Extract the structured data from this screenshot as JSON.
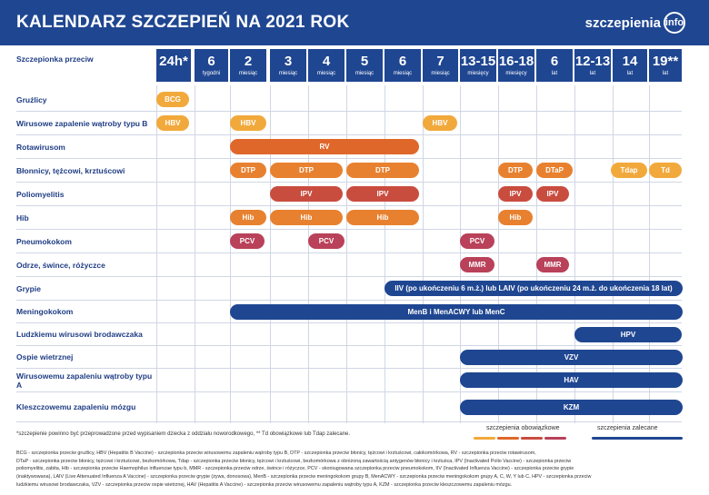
{
  "header": {
    "title": "KALENDARZ SZCZEPIEŃ NA 2021 ROK",
    "logo_text": "szczepienia",
    "logo_badge": "info"
  },
  "columns": {
    "corner_label": "Szczepionka przeciw",
    "ages": [
      {
        "num": "24h*",
        "unit": ""
      },
      {
        "num": "6",
        "unit": "tygodni"
      },
      {
        "num": "2",
        "unit": "miesiąc"
      },
      {
        "num": "3",
        "unit": "miesiąc"
      },
      {
        "num": "4",
        "unit": "miesiąc"
      },
      {
        "num": "5",
        "unit": "miesiąc"
      },
      {
        "num": "6",
        "unit": "miesiąc"
      },
      {
        "num": "7",
        "unit": "miesiąc"
      },
      {
        "num": "13-15",
        "unit": "miesięcy"
      },
      {
        "num": "16-18",
        "unit": "miesięcy"
      },
      {
        "num": "6",
        "unit": "lat"
      },
      {
        "num": "12-13",
        "unit": "lat"
      },
      {
        "num": "14",
        "unit": "lat"
      },
      {
        "num": "19**",
        "unit": "lat"
      }
    ]
  },
  "rows": [
    {
      "label": "Gruźlicy",
      "pills": [
        {
          "text": "BCG",
          "kind": "mand"
        }
      ]
    },
    {
      "label": "Wirusowe zapalenie wątroby typu B",
      "pills": [
        {
          "text": "HBV",
          "kind": "mand"
        },
        {
          "text": "HBV",
          "kind": "mand"
        },
        {
          "text": "HBV",
          "kind": "mand"
        }
      ]
    },
    {
      "label": "Rotawirusom",
      "pills": [
        {
          "text": "RV",
          "kind": "rv"
        }
      ]
    },
    {
      "label": "Błonnicy, tężcowi, krztuścowi",
      "pills": [
        {
          "text": "DTP",
          "kind": "dtp"
        },
        {
          "text": "DTP",
          "kind": "dtp"
        },
        {
          "text": "DTP",
          "kind": "dtp"
        },
        {
          "text": "DTP",
          "kind": "dtp"
        },
        {
          "text": "DTaP",
          "kind": "dtp"
        },
        {
          "text": "Tdap",
          "kind": "mand"
        },
        {
          "text": "Td",
          "kind": "mand"
        }
      ]
    },
    {
      "label": "Poliomyelitis",
      "pills": [
        {
          "text": "IPV",
          "kind": "ipv"
        },
        {
          "text": "IPV",
          "kind": "ipv"
        },
        {
          "text": "IPV",
          "kind": "ipv"
        },
        {
          "text": "IPV",
          "kind": "ipv"
        }
      ]
    },
    {
      "label": "Hib",
      "pills": [
        {
          "text": "Hib",
          "kind": "dtp"
        },
        {
          "text": "Hib",
          "kind": "dtp"
        },
        {
          "text": "Hib",
          "kind": "dtp"
        },
        {
          "text": "Hib",
          "kind": "dtp"
        }
      ]
    },
    {
      "label": "Pneumokokom",
      "pills": [
        {
          "text": "PCV",
          "kind": "pcv"
        },
        {
          "text": "PCV",
          "kind": "pcv"
        },
        {
          "text": "PCV",
          "kind": "pcv"
        }
      ]
    },
    {
      "label": "Odrze, śwince, różyczce",
      "pills": [
        {
          "text": "MMR",
          "kind": "pcv"
        },
        {
          "text": "MMR",
          "kind": "pcv"
        }
      ]
    },
    {
      "label": "Grypie",
      "pills": [
        {
          "text": "IIV (po ukończeniu 6 m.ż.) lub LAIV (po ukończeniu 24 m.ż. do ukończenia 18 lat)",
          "kind": "rec"
        }
      ]
    },
    {
      "label": "Meningokokom",
      "pills": [
        {
          "text": "MenB i MenACWY lub MenC",
          "kind": "rec"
        }
      ]
    },
    {
      "label": "Ludzkiemu wirusowi brodawczaka",
      "pills": [
        {
          "text": "HPV",
          "kind": "rec"
        }
      ]
    },
    {
      "label": "Ospie wietrznej",
      "pills": [
        {
          "text": "VZV",
          "kind": "rec"
        }
      ]
    },
    {
      "label": "Wirusowemu zapaleniu wątroby typu A",
      "pills": [
        {
          "text": "HAV",
          "kind": "rec"
        }
      ]
    },
    {
      "label": "Kleszczowemu zapaleniu mózgu",
      "pills": [
        {
          "text": "KZM",
          "kind": "rec"
        }
      ]
    }
  ],
  "colors": {
    "mand": "#f2a93b",
    "rv": "#e0672a",
    "dtp": "#e8812f",
    "ipv": "#c94d3f",
    "pcv": "#b94159",
    "rec": "#1f4691",
    "navy": "#1f4691"
  },
  "footnote": "*szczepienie powinno być przeprowadzone przed wypisaniem dziecka z oddziału noworodkowego, ** Td obowiązkowe lub Tdap zalecane.",
  "legend": {
    "mandatory": "szczepienia obowiązkowe",
    "recommended": "szczepienia zalecane"
  },
  "glossary": [
    "BCG - szczepionka przeciw gruźlicy, HBV (Hepatitis B Vaccine) - szczepionka przeciw wirusowemu zapaleniu wątroby typu B, DTP - szczepionka przeciw błonicy, tężcowi i krztuścowi, całokomórkowa, RV - szczepionka przeciw rotawirusom,",
    "DTaP - szczepionka przeciw błonicy, tężcowi i krztuścowi, bezkomórkowa, Tdap - szczepionka przeciw błonicy, tężcowi i krztuścowi, bezkomórkowa z obniżoną zawartością antygenów błonicy i krztuśca, IPV (Inactivated Polio Vaccine) - szczepionka przeciw",
    "poliomyelitis, zabita, Hib - szczepionka przeciw Haemophilus influenzae typu b, MMR - szczepionka przeciw odrze, śwince i różyczce, PCV - skoniugowana szczepionka przeciw pneumokokom, IIV (Inactivated Influenza Vaccine) - szczepionka przeciw grypie",
    "(inaktywowana), LAIV (Live Attenuated Influenza A Vaccine) - szczepionka przeciw grypie (żywa, donosowa), MenB - szczepionka przeciw meningokokom grupy B, MenACWY - szczepionka przeciw meningokokom grupy A, C, W, Y lub C, HPV - szczepionka przeciw",
    "ludzkiemu wirusowi brodawczaka, VZV - szczepionka przeciw ospie wietrznej, HAV (Hepatitis A Vaccine) - szczepionka przeciw wirusowemu zapaleniu wątroby typu A, KZM - szczepionka przeciw kleszczowemu zapaleniu mózgu."
  ]
}
